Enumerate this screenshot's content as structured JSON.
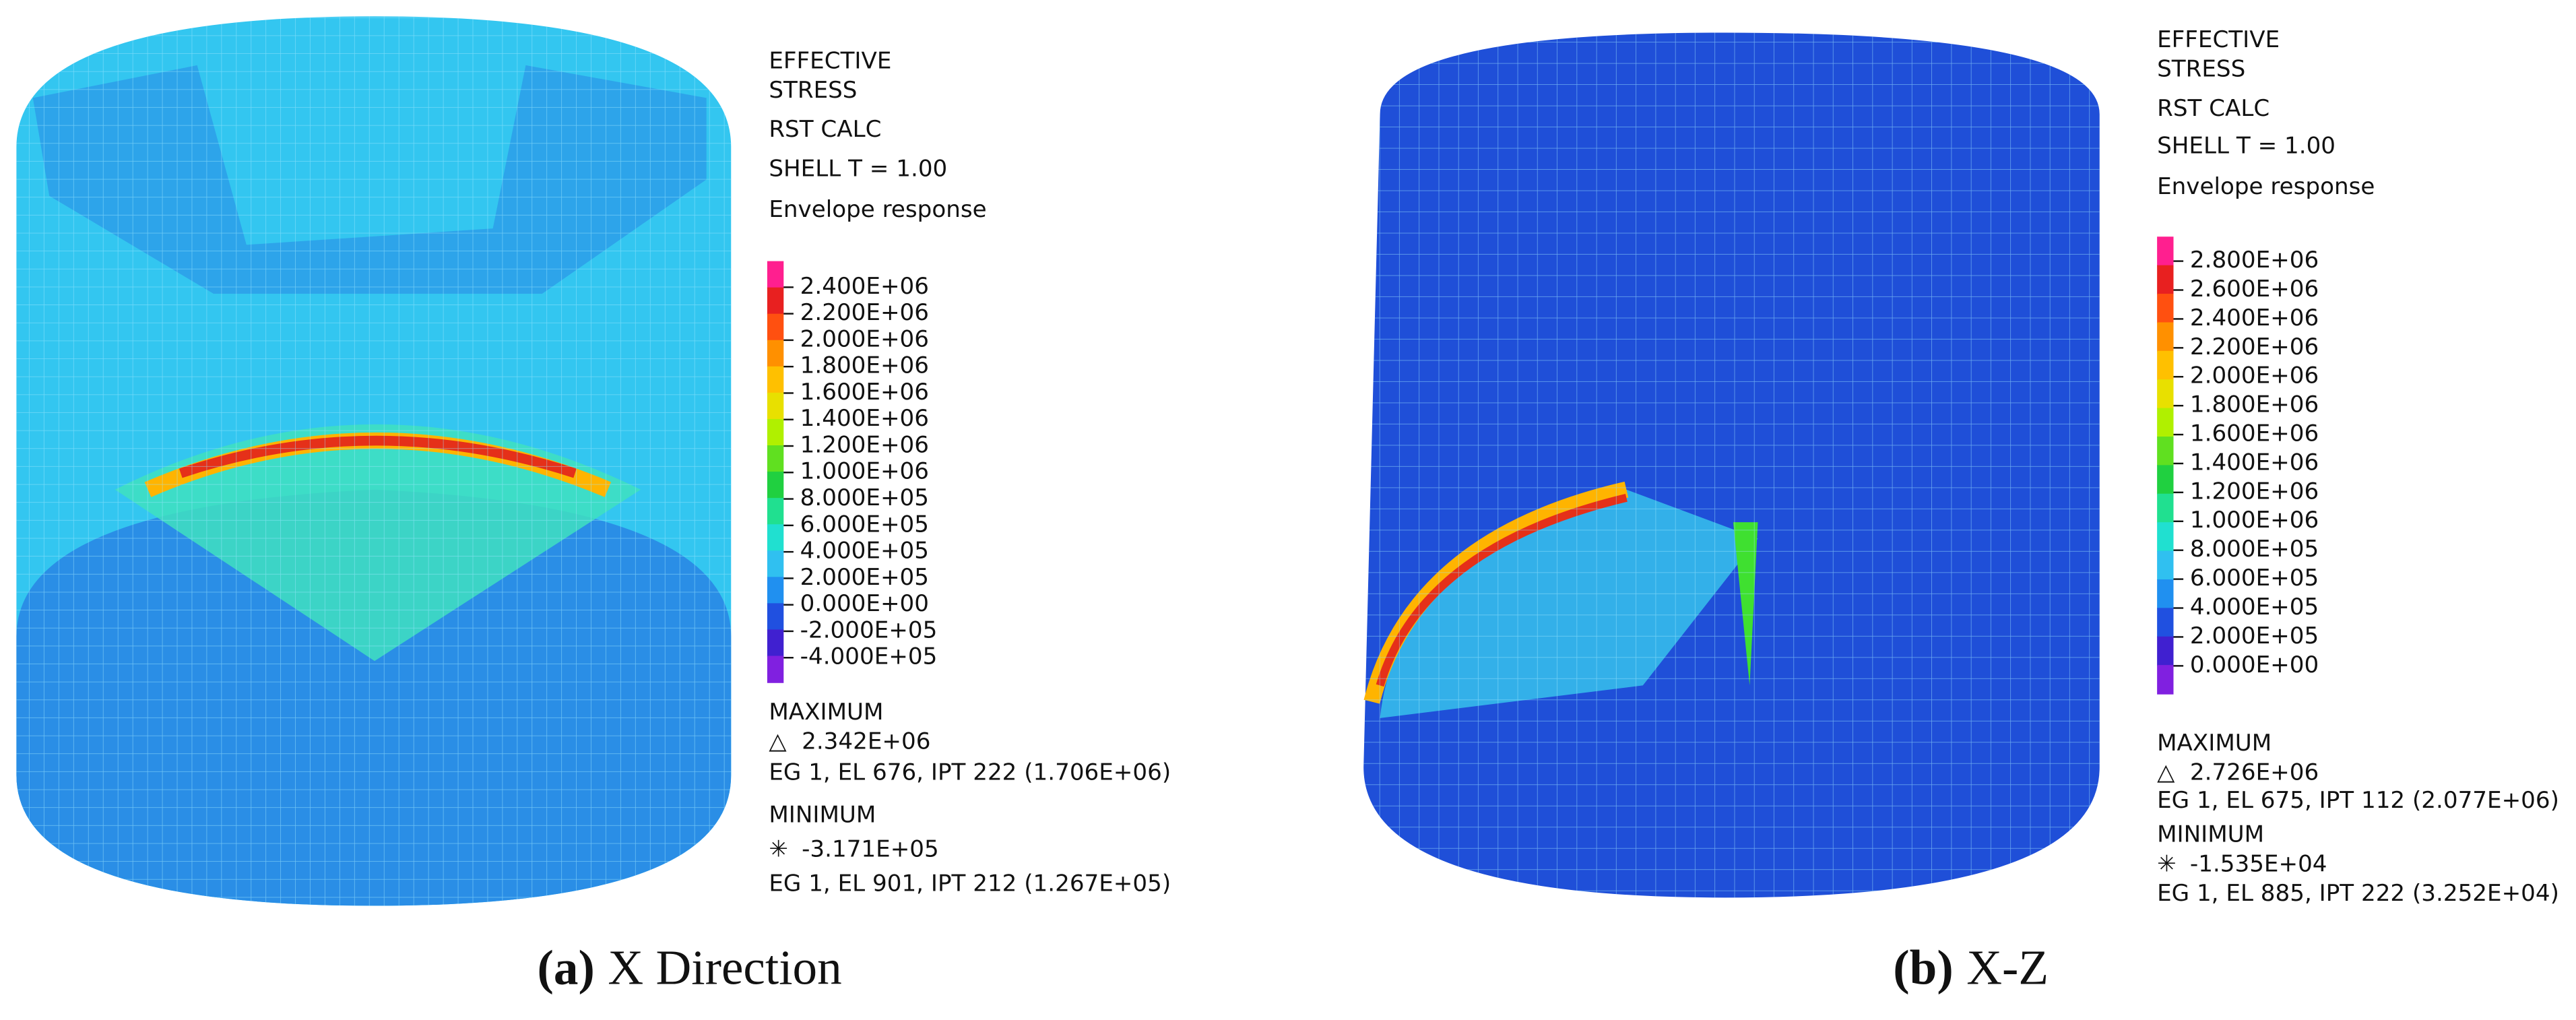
{
  "panels": [
    {
      "title_lines": [
        "EFFECTIVE",
        "STRESS"
      ],
      "calc": "RST CALC",
      "shell": "SHELL T = 1.00",
      "response": "Envelope response",
      "scale": [
        "2.400E+06",
        "2.200E+06",
        "2.000E+06",
        "1.800E+06",
        "1.600E+06",
        "1.400E+06",
        "1.200E+06",
        "1.000E+06",
        "8.000E+05",
        "6.000E+05",
        "4.000E+05",
        "2.000E+05",
        "0.000E+00",
        "-2.000E+05",
        "-4.000E+05"
      ],
      "maximum": {
        "label": "MAXIMUM",
        "symbol": "△",
        "value": "2.342E+06",
        "detail": "EG 1, EL 676, IPT 222 (1.706E+06)"
      },
      "minimum": {
        "label": "MINIMUM",
        "symbol": "✳",
        "value": "-3.171E+05",
        "detail": "EG 1, EL 901, IPT 212 (1.267E+05)"
      },
      "caption": {
        "letter": "(a)",
        "text": "X Direction"
      }
    },
    {
      "title_lines": [
        "EFFECTIVE",
        "STRESS"
      ],
      "calc": "RST CALC",
      "shell": "SHELL T = 1.00",
      "response": "Envelope response",
      "scale": [
        "2.800E+06",
        "2.600E+06",
        "2.400E+06",
        "2.200E+06",
        "2.000E+06",
        "1.800E+06",
        "1.600E+06",
        "1.400E+06",
        "1.200E+06",
        "1.000E+06",
        "8.000E+05",
        "6.000E+05",
        "4.000E+05",
        "2.000E+05",
        "0.000E+00"
      ],
      "maximum": {
        "label": "MAXIMUM",
        "symbol": "△",
        "value": "2.726E+06",
        "detail": "EG 1, EL 675, IPT 112 (2.077E+06)"
      },
      "minimum": {
        "label": "MINIMUM",
        "symbol": "✳",
        "value": "-1.535E+04",
        "detail": "EG 1, EL 885, IPT 222 (3.252E+04)"
      },
      "caption": {
        "letter": "(b)",
        "text": "X-Z"
      }
    }
  ]
}
